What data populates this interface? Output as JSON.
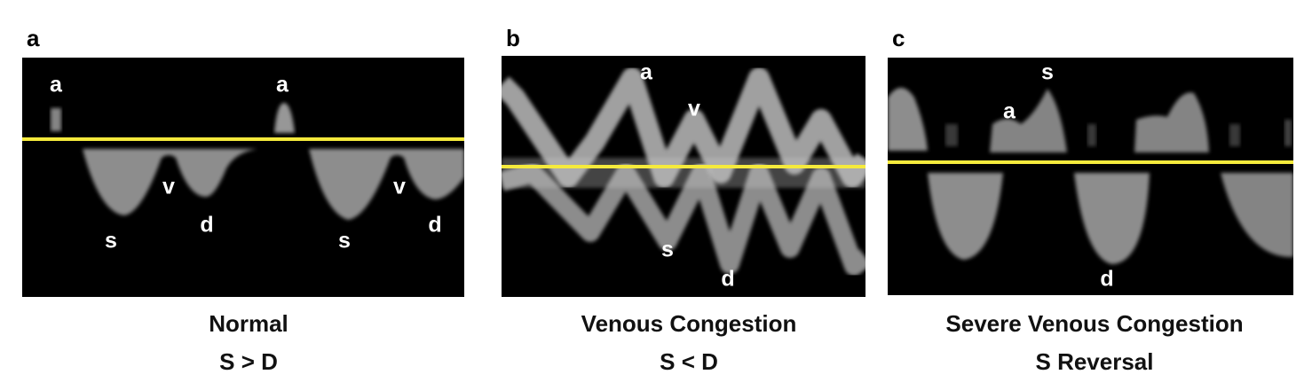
{
  "panels": [
    {
      "letter": "a",
      "labels": [
        "a",
        "a",
        "v",
        "s",
        "d",
        "s",
        "v",
        "d"
      ],
      "caption": [
        "Normal",
        "S > D"
      ]
    },
    {
      "letter": "b",
      "labels": [
        "a",
        "v",
        "s",
        "d"
      ],
      "caption": [
        "Venous Congestion",
        "S < D"
      ]
    },
    {
      "letter": "c",
      "labels": [
        "s",
        "a",
        "d"
      ],
      "caption": [
        "Severe Venous Congestion",
        "S Reversal"
      ]
    }
  ]
}
